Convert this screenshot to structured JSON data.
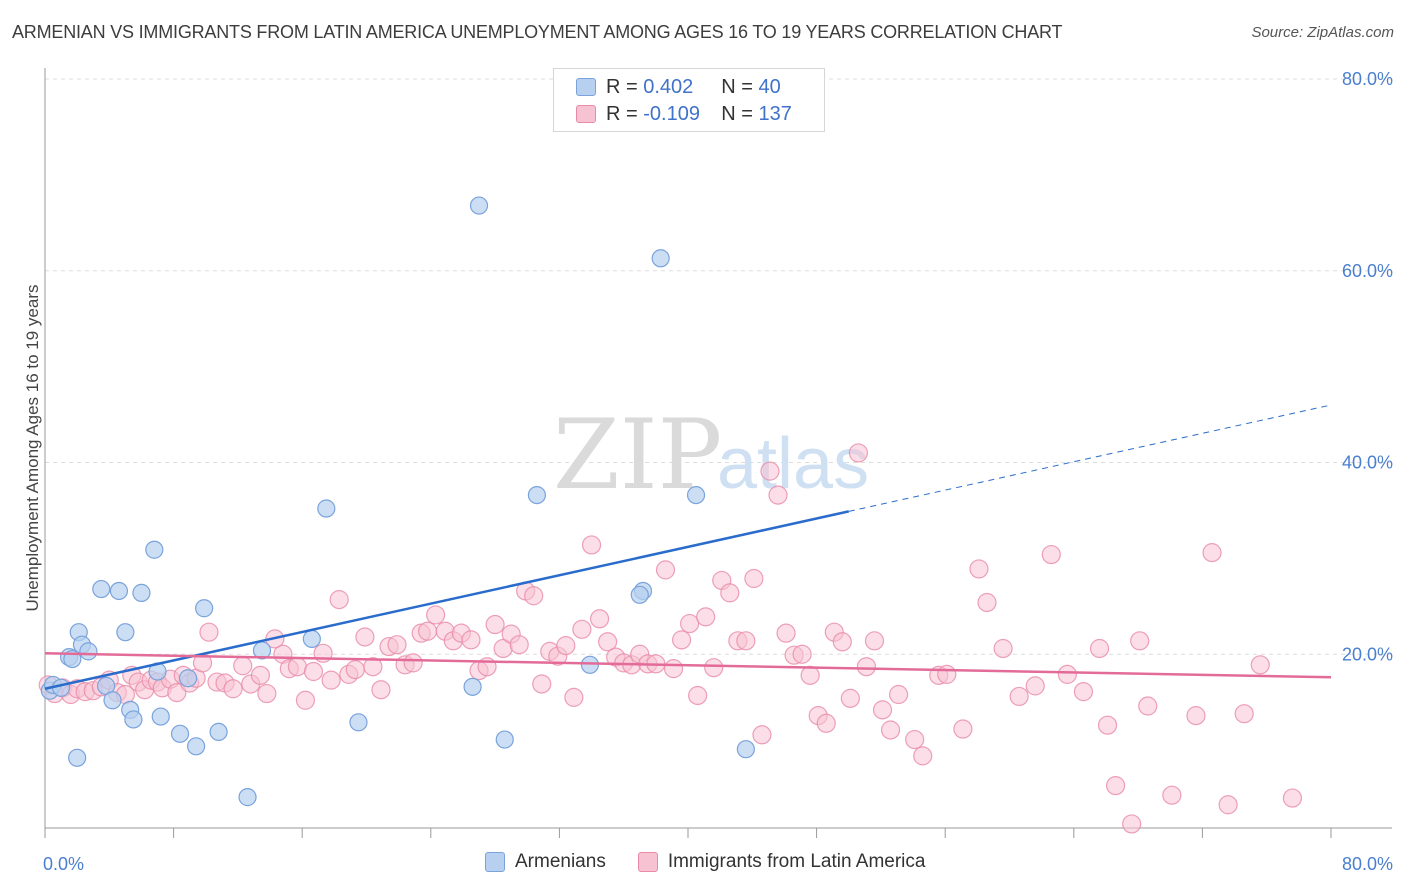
{
  "title": "ARMENIAN VS IMMIGRANTS FROM LATIN AMERICA UNEMPLOYMENT AMONG AGES 16 TO 19 YEARS CORRELATION CHART",
  "source": "Source: ZipAtlas.com",
  "watermark": {
    "zip": "ZIP",
    "atlas": "atlas"
  },
  "legend": {
    "rows": [
      {
        "r_label": "R = ",
        "r_value": "0.402",
        "n_label": "N = ",
        "n_value": "40"
      },
      {
        "r_label": "R = ",
        "r_value": "-0.109",
        "n_label": "N = ",
        "n_value": "137"
      }
    ]
  },
  "bottom_legend": [
    "Armenians",
    "Immigrants from Latin America"
  ],
  "colors": {
    "armenians_fill": "#b7d0f0",
    "armenians_stroke": "#7aa3dc",
    "armenians_line": "#2a6ccc",
    "latin_fill": "#f7c3d3",
    "latin_stroke": "#e98aa8",
    "latin_line": "#e36b98",
    "grid": "#dddddd",
    "tick_text": "#4a7fd0"
  },
  "chart_data": {
    "type": "scatter",
    "title": "ARMENIAN VS IMMIGRANTS FROM LATIN AMERICA UNEMPLOYMENT AMONG AGES 16 TO 19 YEARS CORRELATION CHART",
    "xlabel": "",
    "ylabel": "Unemployment Among Ages 16 to 19 years",
    "xlim": [
      0,
      80
    ],
    "ylim": [
      0,
      80
    ],
    "x_tick_labels": [
      "0.0%",
      "80.0%"
    ],
    "y_tick_values": [
      20,
      40,
      60,
      80
    ],
    "y_tick_labels": [
      "20.0%",
      "40.0%",
      "60.0%",
      "80.0%"
    ],
    "grid": true,
    "legend_position": "top-center",
    "series": [
      {
        "name": "Armenians",
        "r": 0.402,
        "n": 40,
        "trend": {
          "x0": 0,
          "y0": 16.4,
          "x1": 50,
          "y1": 34.9,
          "dashed_to_x": 80,
          "dashed_to_y": 46.0
        },
        "points": [
          [
            0.3,
            16.2
          ],
          [
            0.5,
            16.8
          ],
          [
            1.0,
            16.5
          ],
          [
            1.5,
            19.7
          ],
          [
            1.7,
            19.5
          ],
          [
            2.1,
            22.3
          ],
          [
            2.3,
            21.0
          ],
          [
            2.7,
            20.3
          ],
          [
            3.5,
            26.8
          ],
          [
            3.8,
            16.7
          ],
          [
            4.2,
            15.2
          ],
          [
            4.6,
            26.6
          ],
          [
            5.0,
            22.3
          ],
          [
            5.3,
            14.2
          ],
          [
            5.5,
            13.2
          ],
          [
            6.0,
            26.4
          ],
          [
            6.8,
            30.9
          ],
          [
            7.0,
            18.2
          ],
          [
            7.2,
            13.5
          ],
          [
            8.4,
            11.7
          ],
          [
            8.9,
            17.5
          ],
          [
            9.4,
            10.4
          ],
          [
            9.9,
            24.8
          ],
          [
            10.8,
            11.9
          ],
          [
            12.6,
            5.1
          ],
          [
            13.5,
            20.4
          ],
          [
            16.6,
            21.6
          ],
          [
            17.5,
            35.2
          ],
          [
            19.5,
            12.9
          ],
          [
            26.6,
            16.6
          ],
          [
            27.0,
            66.8
          ],
          [
            28.6,
            11.1
          ],
          [
            30.6,
            36.6
          ],
          [
            33.9,
            18.9
          ],
          [
            37.2,
            26.6
          ],
          [
            38.3,
            61.3
          ],
          [
            40.5,
            36.6
          ],
          [
            43.6,
            10.1
          ],
          [
            2.0,
            9.2
          ],
          [
            37.0,
            26.2
          ]
        ]
      },
      {
        "name": "Immigrants from Latin America",
        "r": -0.109,
        "n": 137,
        "trend": {
          "x0": 0,
          "y0": 20.1,
          "x1": 80,
          "y1": 17.6
        },
        "points": [
          [
            0.2,
            16.8
          ],
          [
            0.6,
            15.9
          ],
          [
            1.1,
            16.5
          ],
          [
            1.6,
            15.8
          ],
          [
            2.0,
            16.4
          ],
          [
            2.5,
            16.1
          ],
          [
            3.0,
            16.2
          ],
          [
            3.5,
            16.6
          ],
          [
            4.0,
            17.3
          ],
          [
            4.5,
            16.0
          ],
          [
            5.0,
            15.8
          ],
          [
            5.4,
            17.8
          ],
          [
            5.8,
            17.1
          ],
          [
            6.2,
            16.3
          ],
          [
            6.6,
            17.3
          ],
          [
            7.0,
            17.1
          ],
          [
            7.3,
            16.5
          ],
          [
            7.8,
            17.4
          ],
          [
            8.2,
            16.0
          ],
          [
            8.6,
            17.8
          ],
          [
            9.0,
            17.0
          ],
          [
            9.4,
            17.5
          ],
          [
            9.8,
            19.1
          ],
          [
            10.2,
            22.3
          ],
          [
            10.7,
            17.1
          ],
          [
            11.2,
            17.0
          ],
          [
            11.7,
            16.4
          ],
          [
            12.3,
            18.8
          ],
          [
            12.8,
            16.9
          ],
          [
            13.4,
            17.8
          ],
          [
            13.8,
            15.9
          ],
          [
            14.3,
            21.6
          ],
          [
            14.8,
            20.0
          ],
          [
            15.2,
            18.5
          ],
          [
            15.7,
            18.7
          ],
          [
            16.2,
            15.2
          ],
          [
            16.7,
            18.2
          ],
          [
            17.3,
            20.1
          ],
          [
            17.8,
            17.3
          ],
          [
            18.3,
            25.7
          ],
          [
            18.9,
            17.9
          ],
          [
            19.3,
            18.4
          ],
          [
            19.9,
            21.8
          ],
          [
            20.4,
            18.7
          ],
          [
            20.9,
            16.3
          ],
          [
            21.4,
            20.8
          ],
          [
            21.9,
            21.0
          ],
          [
            22.4,
            18.9
          ],
          [
            22.9,
            19.1
          ],
          [
            23.4,
            22.2
          ],
          [
            23.8,
            22.4
          ],
          [
            24.3,
            24.1
          ],
          [
            24.9,
            22.4
          ],
          [
            25.4,
            21.4
          ],
          [
            25.9,
            22.2
          ],
          [
            26.5,
            21.5
          ],
          [
            27.0,
            18.3
          ],
          [
            27.5,
            18.7
          ],
          [
            28.0,
            23.1
          ],
          [
            28.5,
            20.6
          ],
          [
            29.0,
            22.1
          ],
          [
            29.5,
            21.0
          ],
          [
            29.9,
            26.6
          ],
          [
            30.4,
            26.1
          ],
          [
            30.9,
            16.9
          ],
          [
            31.4,
            20.3
          ],
          [
            31.9,
            19.8
          ],
          [
            32.4,
            20.9
          ],
          [
            32.9,
            15.5
          ],
          [
            33.4,
            22.6
          ],
          [
            34.0,
            31.4
          ],
          [
            34.5,
            23.7
          ],
          [
            35.0,
            21.3
          ],
          [
            35.5,
            19.7
          ],
          [
            36.0,
            19.1
          ],
          [
            36.5,
            18.9
          ],
          [
            37.0,
            20.0
          ],
          [
            37.5,
            19.0
          ],
          [
            38.0,
            19.0
          ],
          [
            38.6,
            28.8
          ],
          [
            39.1,
            18.5
          ],
          [
            39.6,
            21.5
          ],
          [
            40.1,
            23.2
          ],
          [
            40.6,
            15.7
          ],
          [
            41.1,
            23.9
          ],
          [
            41.6,
            18.6
          ],
          [
            42.1,
            27.7
          ],
          [
            42.6,
            26.4
          ],
          [
            43.1,
            21.4
          ],
          [
            43.6,
            21.4
          ],
          [
            44.1,
            27.9
          ],
          [
            44.6,
            11.6
          ],
          [
            45.1,
            39.1
          ],
          [
            45.6,
            36.6
          ],
          [
            46.1,
            22.2
          ],
          [
            46.6,
            19.9
          ],
          [
            47.1,
            20.0
          ],
          [
            47.6,
            17.8
          ],
          [
            48.1,
            13.6
          ],
          [
            48.6,
            12.8
          ],
          [
            49.1,
            22.3
          ],
          [
            49.6,
            21.3
          ],
          [
            50.1,
            15.4
          ],
          [
            50.6,
            41.0
          ],
          [
            51.1,
            18.7
          ],
          [
            51.6,
            21.4
          ],
          [
            52.1,
            14.2
          ],
          [
            52.6,
            12.1
          ],
          [
            53.1,
            15.8
          ],
          [
            54.1,
            11.1
          ],
          [
            54.6,
            9.4
          ],
          [
            55.6,
            17.8
          ],
          [
            56.1,
            17.9
          ],
          [
            57.1,
            12.2
          ],
          [
            58.1,
            28.9
          ],
          [
            58.6,
            25.4
          ],
          [
            59.6,
            20.6
          ],
          [
            60.6,
            15.6
          ],
          [
            61.6,
            16.7
          ],
          [
            62.6,
            30.4
          ],
          [
            63.6,
            17.9
          ],
          [
            64.6,
            16.1
          ],
          [
            65.6,
            20.6
          ],
          [
            66.1,
            12.6
          ],
          [
            66.6,
            6.3
          ],
          [
            67.6,
            2.3
          ],
          [
            68.1,
            21.4
          ],
          [
            68.6,
            14.6
          ],
          [
            70.1,
            5.3
          ],
          [
            71.6,
            13.6
          ],
          [
            72.6,
            30.6
          ],
          [
            73.6,
            4.3
          ],
          [
            74.6,
            13.8
          ],
          [
            75.6,
            18.9
          ],
          [
            77.6,
            5.0
          ]
        ]
      }
    ]
  }
}
